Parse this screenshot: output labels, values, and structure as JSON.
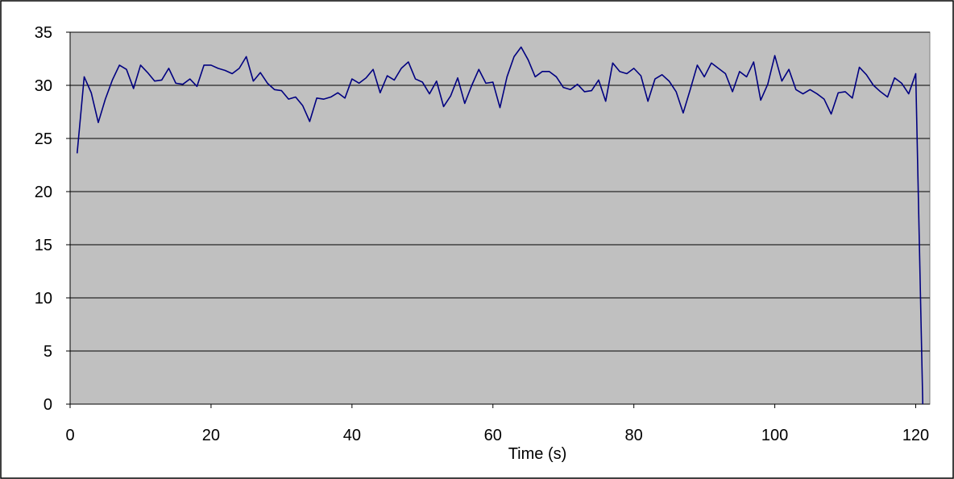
{
  "chart_data": {
    "type": "line",
    "title": "",
    "xlabel": "Time (s)",
    "ylabel": "",
    "xlim": [
      0,
      122
    ],
    "ylim": [
      0,
      35
    ],
    "xticks": [
      0,
      20,
      40,
      60,
      80,
      100,
      120
    ],
    "yticks": [
      0,
      5,
      10,
      15,
      20,
      25,
      30,
      35
    ],
    "grid": true,
    "legend": "none",
    "colors": {
      "series": "#000080",
      "plot_background": "#c0c0c0"
    },
    "series": [
      {
        "x": [
          1,
          2,
          3,
          4,
          5,
          6,
          7,
          8,
          9,
          10,
          11,
          12,
          13,
          14,
          15,
          16,
          17,
          18,
          19,
          20,
          21,
          22,
          23,
          24,
          25,
          26,
          27,
          28,
          29,
          30,
          31,
          32,
          33,
          34,
          35,
          36,
          37,
          38,
          39,
          40,
          41,
          42,
          43,
          44,
          45,
          46,
          47,
          48,
          49,
          50,
          51,
          52,
          53,
          54,
          55,
          56,
          57,
          58,
          59,
          60,
          61,
          62,
          63,
          64,
          65,
          66,
          67,
          68,
          69,
          70,
          71,
          72,
          73,
          74,
          75,
          76,
          77,
          78,
          79,
          80,
          81,
          82,
          83,
          84,
          85,
          86,
          87,
          88,
          89,
          90,
          91,
          92,
          93,
          94,
          95,
          96,
          97,
          98,
          99,
          100,
          101,
          102,
          103,
          104,
          105,
          106,
          107,
          108,
          109,
          110,
          111,
          112,
          113,
          114,
          115,
          116,
          117,
          118,
          119,
          120,
          121
        ],
        "values": [
          23.6,
          30.8,
          29.3,
          26.5,
          28.7,
          30.5,
          31.9,
          31.5,
          29.7,
          31.9,
          31.2,
          30.4,
          30.5,
          31.6,
          30.2,
          30.1,
          30.6,
          29.9,
          31.9,
          31.9,
          31.6,
          31.4,
          31.1,
          31.6,
          32.7,
          30.4,
          31.2,
          30.2,
          29.6,
          29.5,
          28.7,
          28.9,
          28.1,
          26.6,
          28.8,
          28.7,
          28.9,
          29.3,
          28.8,
          30.6,
          30.2,
          30.7,
          31.5,
          29.3,
          30.9,
          30.5,
          31.6,
          32.2,
          30.6,
          30.3,
          29.2,
          30.4,
          28.0,
          29.0,
          30.7,
          28.3,
          30.0,
          31.5,
          30.2,
          30.3,
          27.9,
          30.8,
          32.7,
          33.6,
          32.4,
          30.8,
          31.3,
          31.3,
          30.8,
          29.8,
          29.6,
          30.1,
          29.4,
          29.5,
          30.5,
          28.5,
          32.1,
          31.3,
          31.1,
          31.6,
          30.9,
          28.5,
          30.6,
          31.0,
          30.4,
          29.4,
          27.4,
          29.6,
          31.9,
          30.8,
          32.1,
          31.6,
          31.1,
          29.4,
          31.3,
          30.8,
          32.2,
          28.6,
          30.1,
          32.8,
          30.4,
          31.5,
          29.6,
          29.2,
          29.6,
          29.2,
          28.7,
          27.3,
          29.3,
          29.4,
          28.8,
          31.7,
          31.0,
          30.0,
          29.4,
          28.9,
          30.7,
          30.2,
          29.2,
          31.1,
          0.0
        ]
      }
    ]
  }
}
